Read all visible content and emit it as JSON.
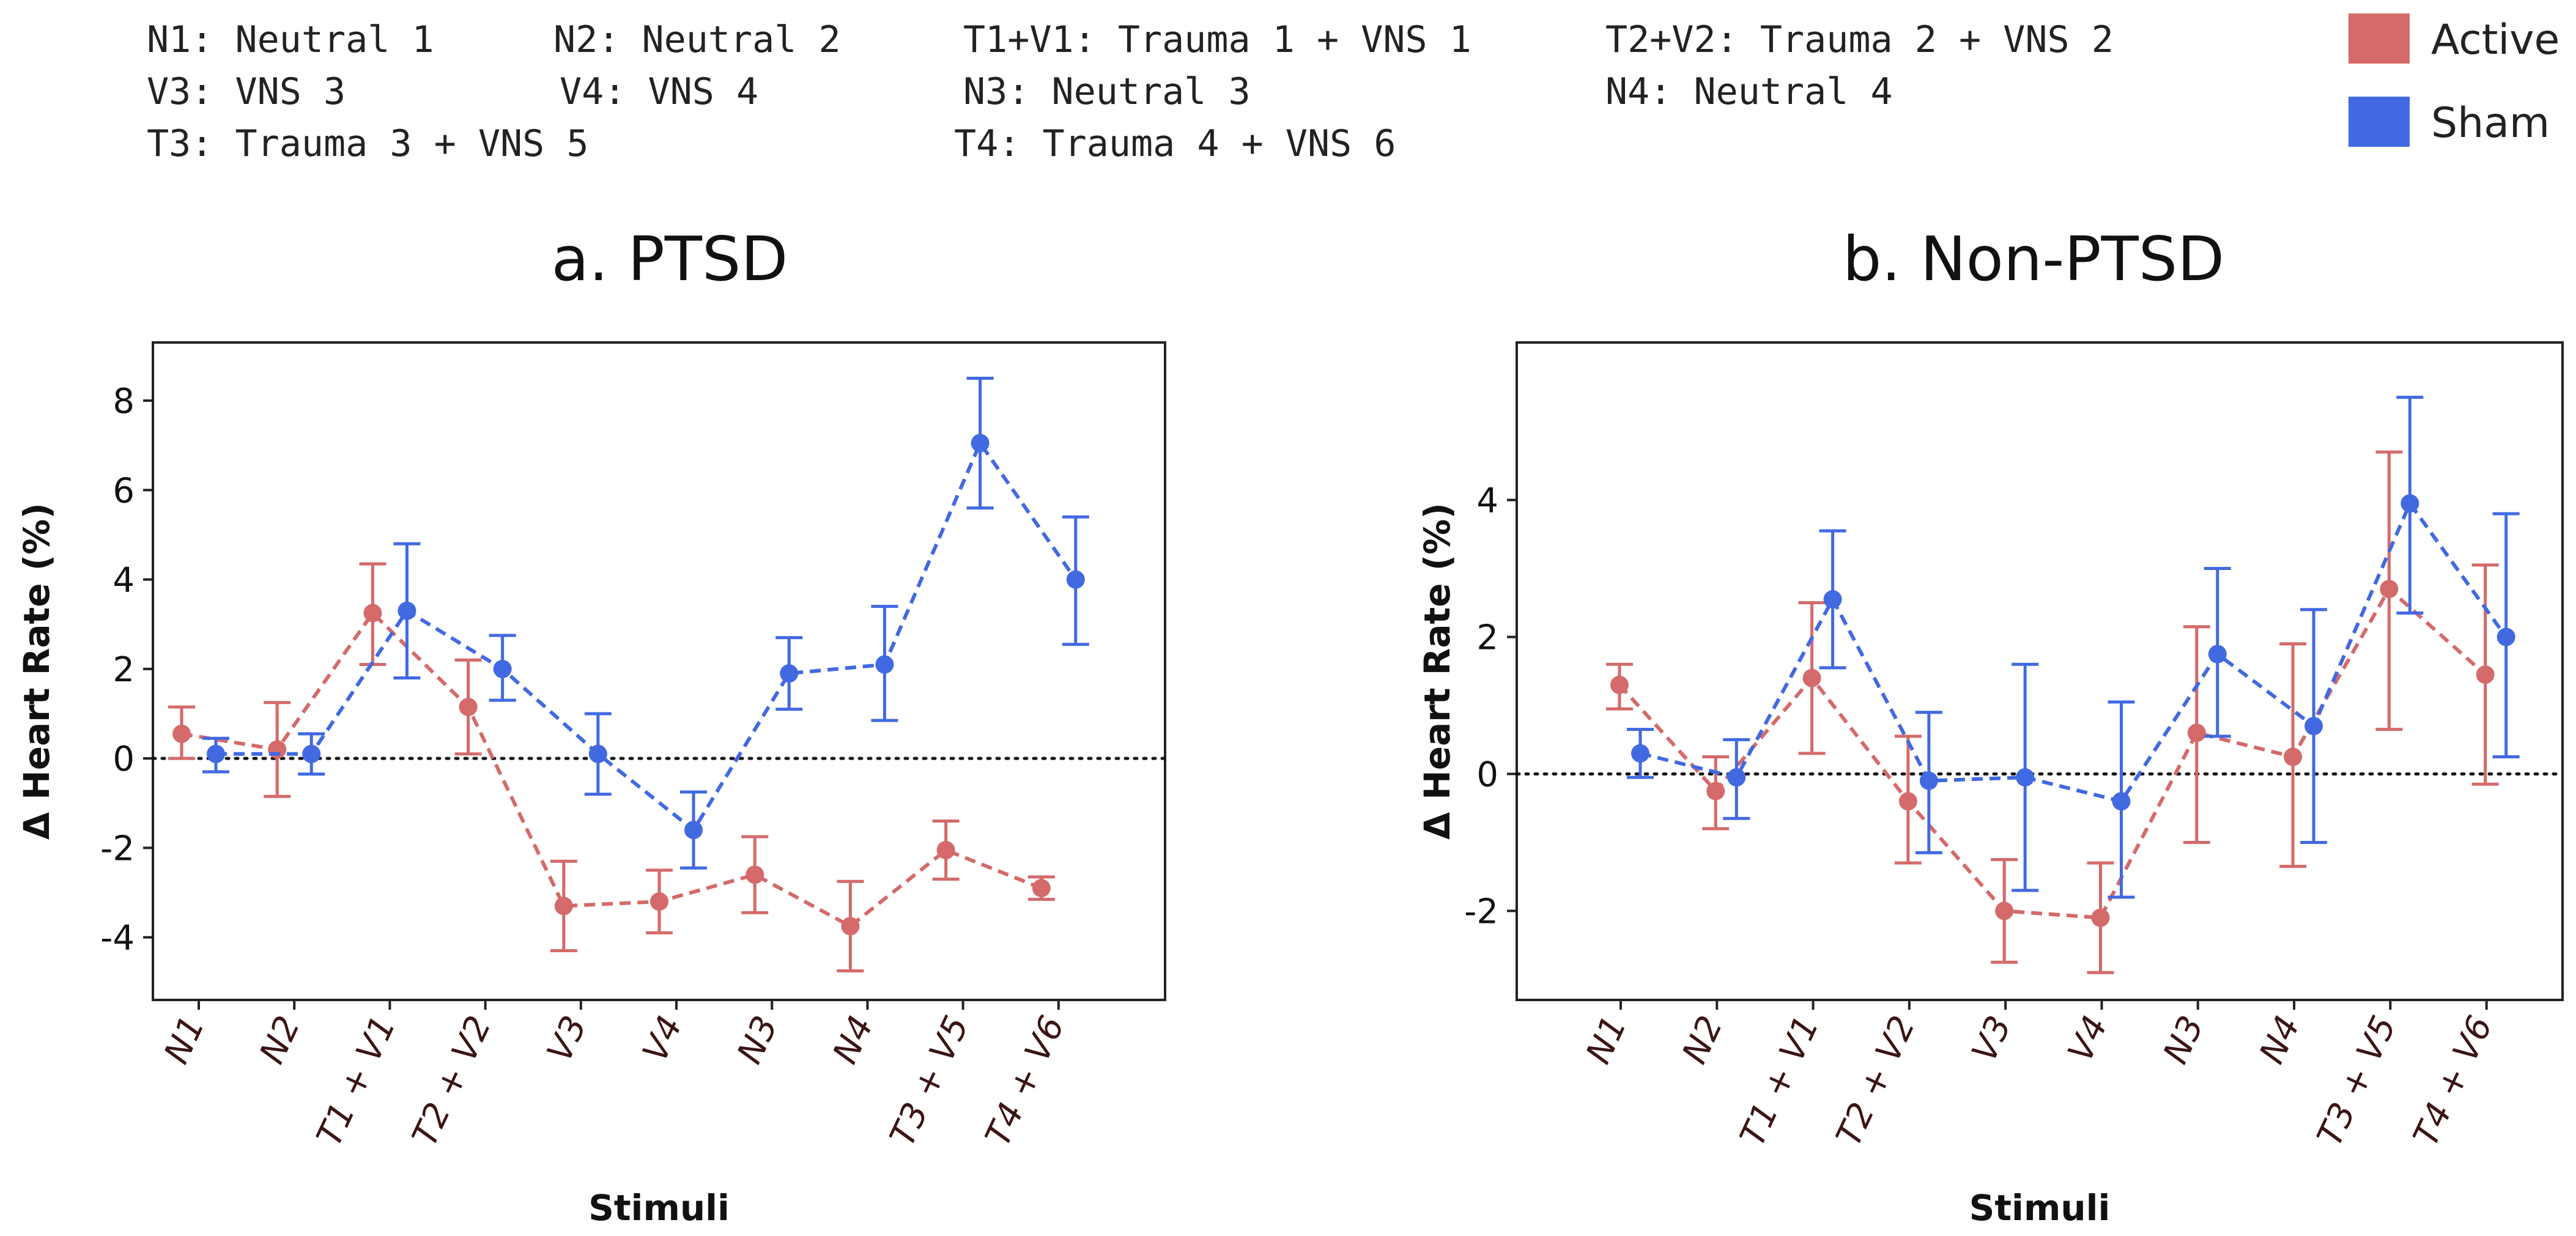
{
  "abbreviations": [
    {
      "text": "N1: Neutral 1"
    },
    {
      "text": "N2: Neutral 2"
    },
    {
      "text": "T1+V1: Trauma 1 + VNS 1"
    },
    {
      "text": "T2+V2: Trauma 2 + VNS 2"
    },
    {
      "text": "V3: VNS 3"
    },
    {
      "text": "V4: VNS 4"
    },
    {
      "text": "N3: Neutral 3"
    },
    {
      "text": "N4: Neutral 4"
    },
    {
      "text": "T3: Trauma 3 + VNS 5"
    },
    {
      "text": "T4: Trauma 4 + VNS 6"
    }
  ],
  "legend": {
    "items": [
      {
        "label": "Active",
        "color": "#d46a6a"
      },
      {
        "label": "Sham",
        "color": "#4169e1"
      }
    ]
  },
  "colors": {
    "active": "#d46a6a",
    "sham": "#4169e1",
    "tick_label": "#3b1414"
  },
  "chart_data": [
    {
      "type": "line",
      "title": "a. PTSD",
      "xlabel": "Stimuli",
      "ylabel": "Δ Heart Rate (%)",
      "categories": [
        "N1",
        "N2",
        "T1 + V1",
        "T2 + V2",
        "V3",
        "V4",
        "N3",
        "N4",
        "T3 + V5",
        "T4 + V6"
      ],
      "ylim": [
        -5.4,
        9.3
      ],
      "yticks": [
        -4,
        -2,
        0,
        2,
        4,
        6,
        8
      ],
      "reference_line": 0,
      "series": [
        {
          "name": "Active",
          "values": [
            0.55,
            0.2,
            3.25,
            1.15,
            -3.3,
            -3.2,
            -2.6,
            -3.75,
            -2.05,
            -2.9
          ],
          "err_low": [
            0.0,
            -0.85,
            2.1,
            0.1,
            -4.3,
            -3.9,
            -3.45,
            -4.75,
            -2.7,
            -3.15
          ],
          "err_high": [
            1.15,
            1.25,
            4.35,
            2.2,
            -2.3,
            -2.5,
            -1.75,
            -2.75,
            -1.4,
            -2.65
          ]
        },
        {
          "name": "Sham",
          "values": [
            0.1,
            0.1,
            3.3,
            2.0,
            0.1,
            -1.6,
            1.9,
            2.1,
            7.05,
            4.0
          ],
          "err_low": [
            -0.3,
            -0.35,
            1.8,
            1.3,
            -0.8,
            -2.45,
            1.1,
            0.85,
            5.6,
            2.55
          ],
          "err_high": [
            0.45,
            0.55,
            4.8,
            2.75,
            1.0,
            -0.75,
            2.7,
            3.4,
            8.5,
            5.4
          ]
        }
      ]
    },
    {
      "type": "line",
      "title": "b. Non-PTSD",
      "xlabel": "Stimuli",
      "ylabel": "Δ Heart Rate (%)",
      "categories": [
        "N1",
        "N2",
        "T1 + V1",
        "T2 + V2",
        "V3",
        "V4",
        "N3",
        "N4",
        "T3 + V5",
        "T4 + V6"
      ],
      "ylim": [
        -3.3,
        6.3
      ],
      "yticks": [
        -2,
        0,
        2,
        4
      ],
      "reference_line": 0,
      "series": [
        {
          "name": "Active",
          "values": [
            1.3,
            -0.25,
            1.4,
            -0.4,
            -2.0,
            -2.1,
            0.6,
            0.25,
            2.7,
            1.45
          ],
          "err_low": [
            0.95,
            -0.8,
            0.3,
            -1.3,
            -2.75,
            -2.9,
            -1.0,
            -1.35,
            0.65,
            -0.15
          ],
          "err_high": [
            1.6,
            0.25,
            2.5,
            0.55,
            -1.25,
            -1.3,
            2.15,
            1.9,
            4.7,
            3.05
          ]
        },
        {
          "name": "Sham",
          "values": [
            0.3,
            -0.05,
            2.55,
            -0.1,
            -0.05,
            -0.4,
            1.75,
            0.7,
            3.95,
            2.0
          ],
          "err_low": [
            -0.05,
            -0.65,
            1.55,
            -1.15,
            -1.7,
            -1.8,
            0.55,
            -1.0,
            2.35,
            0.25
          ],
          "err_high": [
            0.65,
            0.5,
            3.55,
            0.9,
            1.6,
            1.05,
            3.0,
            2.4,
            5.5,
            3.8
          ]
        }
      ]
    }
  ]
}
